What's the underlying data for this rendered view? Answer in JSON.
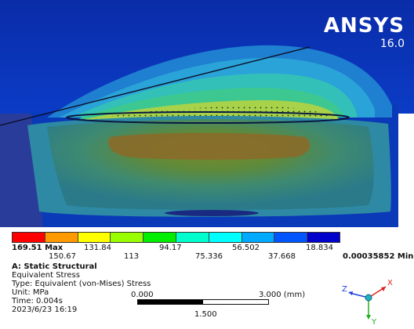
{
  "brand": {
    "name": "ANSYS",
    "version": "16.0"
  },
  "legend": {
    "max_label": "169.51 Max",
    "min_label": "0.00035852 Min",
    "top_labels": [
      "131.84",
      "94.17",
      "56.502",
      "18.834"
    ],
    "bottom_labels": [
      "150.67",
      "113",
      "75.336",
      "37.668"
    ],
    "colors": [
      "#ff0000",
      "#ff9900",
      "#ffff00",
      "#99ff00",
      "#00ee00",
      "#00ffcc",
      "#00ffff",
      "#00aaff",
      "#0055ff",
      "#0000cc"
    ]
  },
  "info": {
    "title": "A: Static Structural",
    "result": "Equivalent Stress",
    "type": "Type: Equivalent (von-Mises) Stress",
    "unit": "Unit: MPa",
    "time": "Time: 0.004s",
    "date": "2023/6/23 16:19"
  },
  "scale": {
    "left": "0.000",
    "right": "3.000 (mm)",
    "mid": "1.500"
  },
  "triad": {
    "x": "X",
    "y": "Y",
    "z": "Z"
  }
}
